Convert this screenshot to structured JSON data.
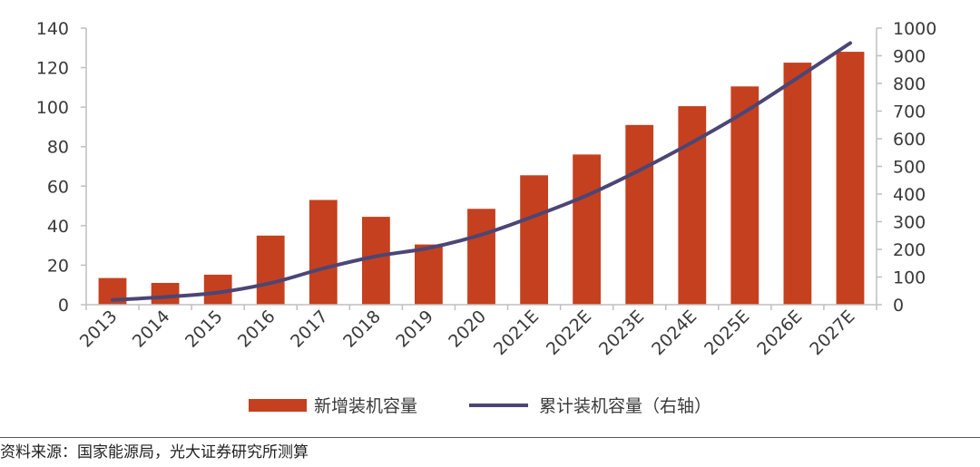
{
  "chart_data": {
    "type": "bar+line",
    "categories": [
      "2013",
      "2014",
      "2015",
      "2016",
      "2017",
      "2018",
      "2019",
      "2020",
      "2021E",
      "2022E",
      "2023E",
      "2024E",
      "2025E",
      "2026E",
      "2027E"
    ],
    "series": [
      {
        "name": "新增装机容量",
        "type": "bar",
        "axis": "left",
        "color": "#c5401e",
        "values": [
          13.5,
          11,
          15.2,
          35,
          53,
          44.5,
          30.5,
          48.5,
          65.5,
          76,
          91,
          100.5,
          110.5,
          122.5,
          128
        ]
      },
      {
        "name": "累计装机容量（右轴）",
        "type": "line",
        "axis": "right",
        "color": "#4b4676",
        "values": [
          17,
          28,
          44,
          78,
          131,
          175,
          205,
          253,
          320,
          395,
          486,
          587,
          697,
          820,
          946
        ]
      }
    ],
    "y_left": {
      "min": 0,
      "max": 140,
      "ticks": [
        0,
        20,
        40,
        60,
        80,
        100,
        120,
        140
      ]
    },
    "y_right": {
      "min": 0,
      "max": 1000,
      "ticks": [
        0,
        100,
        200,
        300,
        400,
        500,
        600,
        700,
        800,
        900,
        1000
      ]
    },
    "legend_position": "bottom",
    "grid": false
  },
  "source_text": "资料来源：国家能源局，光大证券研究所测算"
}
